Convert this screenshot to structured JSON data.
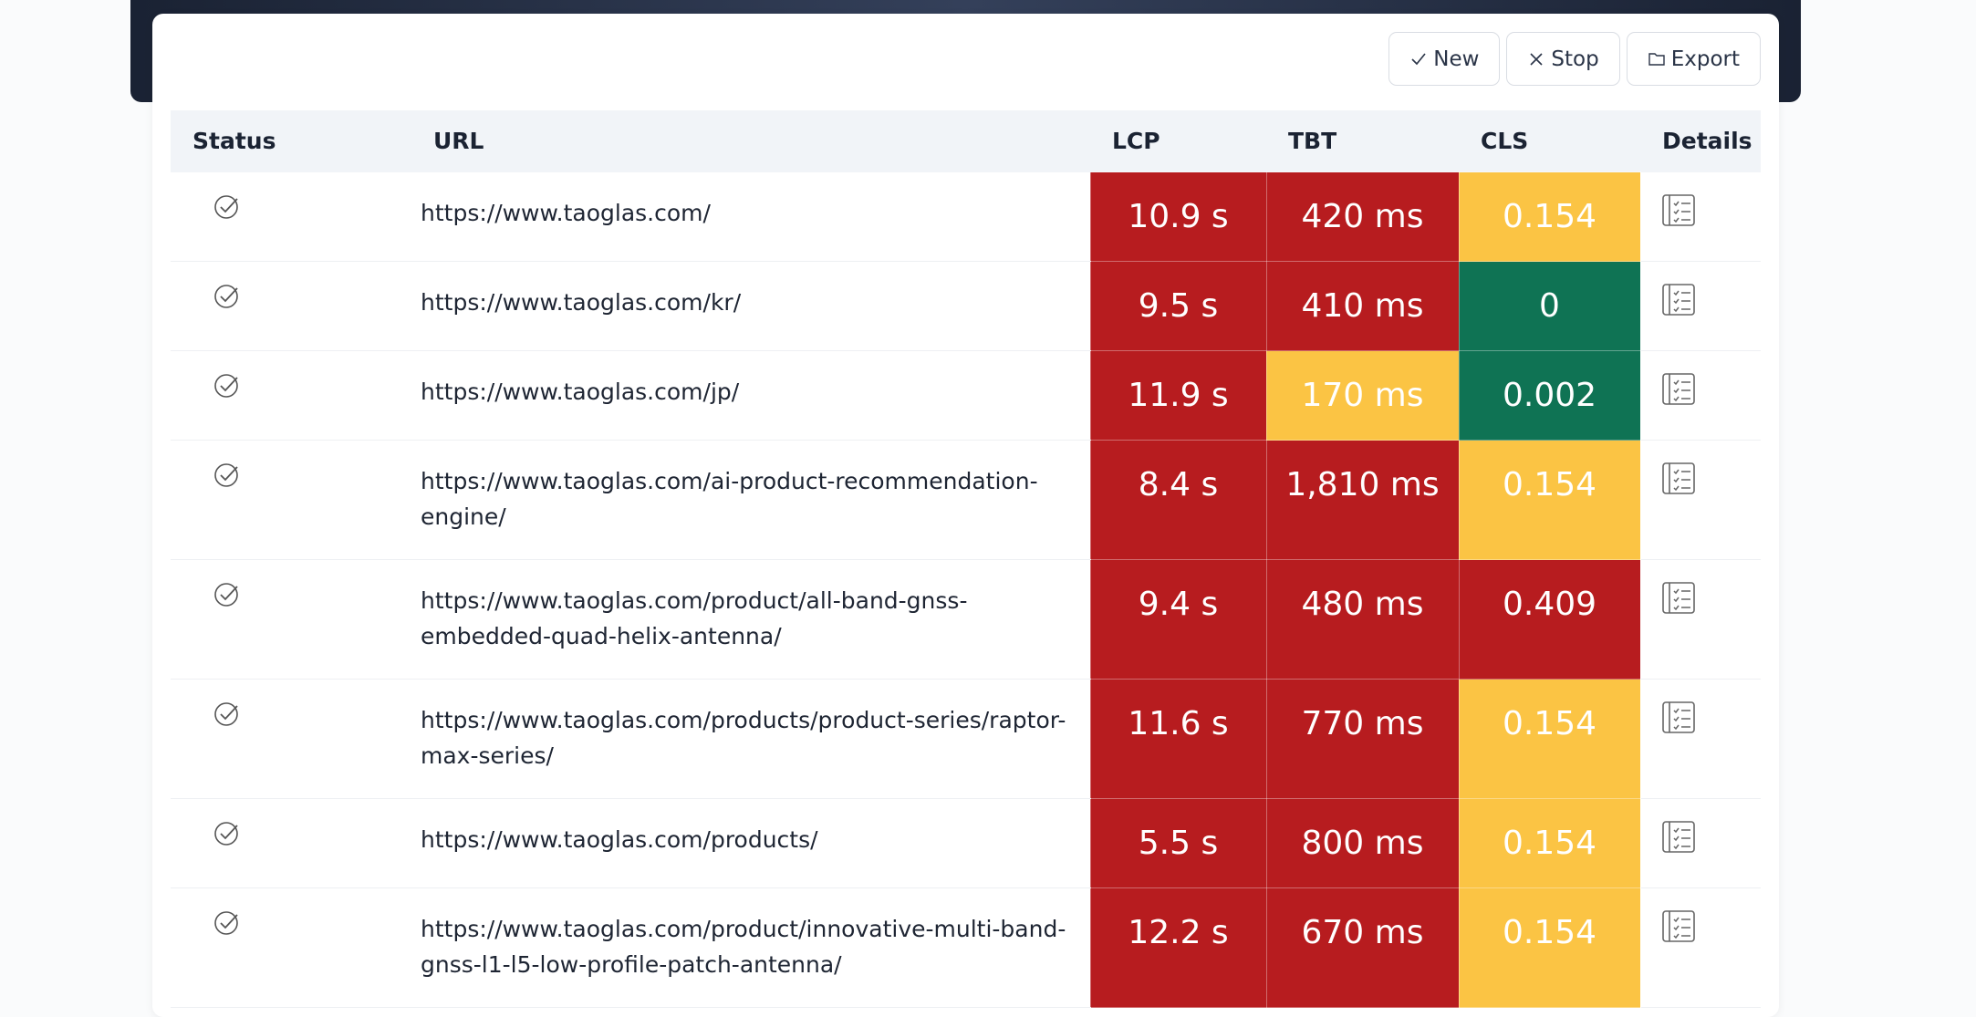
{
  "toolbar": {
    "buttons": [
      "New",
      "Stop",
      "Export"
    ]
  },
  "table": {
    "headers": [
      "Status",
      "URL",
      "LCP",
      "TBT",
      "CLS",
      "Details"
    ],
    "rows": [
      {
        "url": "https://www.taoglas.com/",
        "lcp": {
          "text": "10.9 s",
          "color": "#b71c1f"
        },
        "tbt": {
          "text": "420 ms",
          "color": "#b71c1f"
        },
        "cls": {
          "text": "0.154",
          "color": "#fbc444"
        }
      },
      {
        "url": "https://www.taoglas.com/kr/",
        "lcp": {
          "text": "9.5 s",
          "color": "#b71c1f"
        },
        "tbt": {
          "text": "410 ms",
          "color": "#b71c1f"
        },
        "cls": {
          "text": "0",
          "color": "#0f7354"
        }
      },
      {
        "url": "https://www.taoglas.com/jp/",
        "lcp": {
          "text": "11.9 s",
          "color": "#b71c1f"
        },
        "tbt": {
          "text": "170 ms",
          "color": "#fbc444"
        },
        "cls": {
          "text": "0.002",
          "color": "#0f7354"
        }
      },
      {
        "url": "https://www.taoglas.com/ai-product-recommendation-engine/",
        "lcp": {
          "text": "8.4 s",
          "color": "#b71c1f"
        },
        "tbt": {
          "text": "1,810 ms",
          "color": "#b71c1f"
        },
        "cls": {
          "text": "0.154",
          "color": "#fbc444"
        }
      },
      {
        "url": "https://www.taoglas.com/product/all-band-gnss-embedded-quad-helix-antenna/",
        "lcp": {
          "text": "9.4 s",
          "color": "#b71c1f"
        },
        "tbt": {
          "text": "480 ms",
          "color": "#b71c1f"
        },
        "cls": {
          "text": "0.409",
          "color": "#b71c1f"
        }
      },
      {
        "url": "https://www.taoglas.com/products/product-series/raptor-max-series/",
        "lcp": {
          "text": "11.6 s",
          "color": "#b71c1f"
        },
        "tbt": {
          "text": "770 ms",
          "color": "#b71c1f"
        },
        "cls": {
          "text": "0.154",
          "color": "#fbc444"
        }
      },
      {
        "url": "https://www.taoglas.com/products/",
        "lcp": {
          "text": "5.5 s",
          "color": "#b71c1f"
        },
        "tbt": {
          "text": "800 ms",
          "color": "#b71c1f"
        },
        "cls": {
          "text": "0.154",
          "color": "#fbc444"
        }
      },
      {
        "url": "https://www.taoglas.com/product/innovative-multi-band-gnss-l1-l5-low-profile-patch-antenna/",
        "lcp": {
          "text": "12.2 s",
          "color": "#b71c1f"
        },
        "tbt": {
          "text": "670 ms",
          "color": "#b71c1f"
        },
        "cls": {
          "text": "0.154",
          "color": "#fbc444"
        }
      }
    ]
  }
}
